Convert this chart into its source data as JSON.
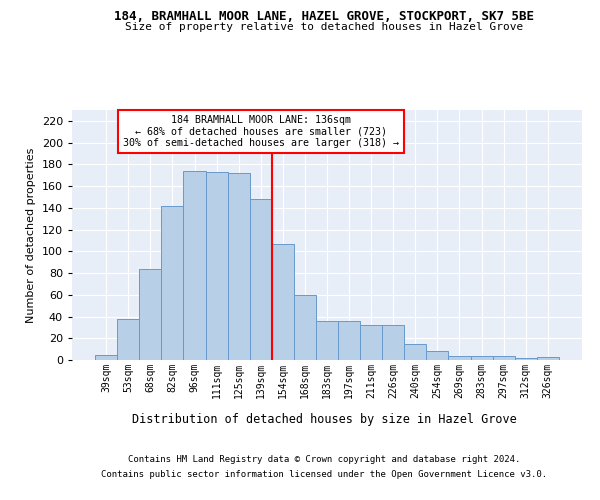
{
  "title_line1": "184, BRAMHALL MOOR LANE, HAZEL GROVE, STOCKPORT, SK7 5BE",
  "title_line2": "Size of property relative to detached houses in Hazel Grove",
  "xlabel": "Distribution of detached houses by size in Hazel Grove",
  "ylabel": "Number of detached properties",
  "categories": [
    "39sqm",
    "53sqm",
    "68sqm",
    "82sqm",
    "96sqm",
    "111sqm",
    "125sqm",
    "139sqm",
    "154sqm",
    "168sqm",
    "183sqm",
    "197sqm",
    "211sqm",
    "226sqm",
    "240sqm",
    "254sqm",
    "269sqm",
    "283sqm",
    "297sqm",
    "312sqm",
    "326sqm"
  ],
  "values": [
    5,
    38,
    84,
    142,
    174,
    173,
    172,
    148,
    107,
    60,
    36,
    36,
    32,
    32,
    15,
    8,
    4,
    4,
    4,
    2,
    3
  ],
  "bar_color": "#b8cfe8",
  "bar_edge_color": "#6699cc",
  "vline_color": "red",
  "vline_pos": 7.5,
  "annotation_title": "184 BRAMHALL MOOR LANE: 136sqm",
  "annotation_line1": "← 68% of detached houses are smaller (723)",
  "annotation_line2": "30% of semi-detached houses are larger (318) →",
  "annotation_box_color": "white",
  "annotation_box_edge_color": "red",
  "ylim": [
    0,
    230
  ],
  "yticks": [
    0,
    20,
    40,
    60,
    80,
    100,
    120,
    140,
    160,
    180,
    200,
    220
  ],
  "footnote_line1": "Contains HM Land Registry data © Crown copyright and database right 2024.",
  "footnote_line2": "Contains public sector information licensed under the Open Government Licence v3.0.",
  "background_color": "#e8eef8",
  "fig_background_color": "#ffffff"
}
